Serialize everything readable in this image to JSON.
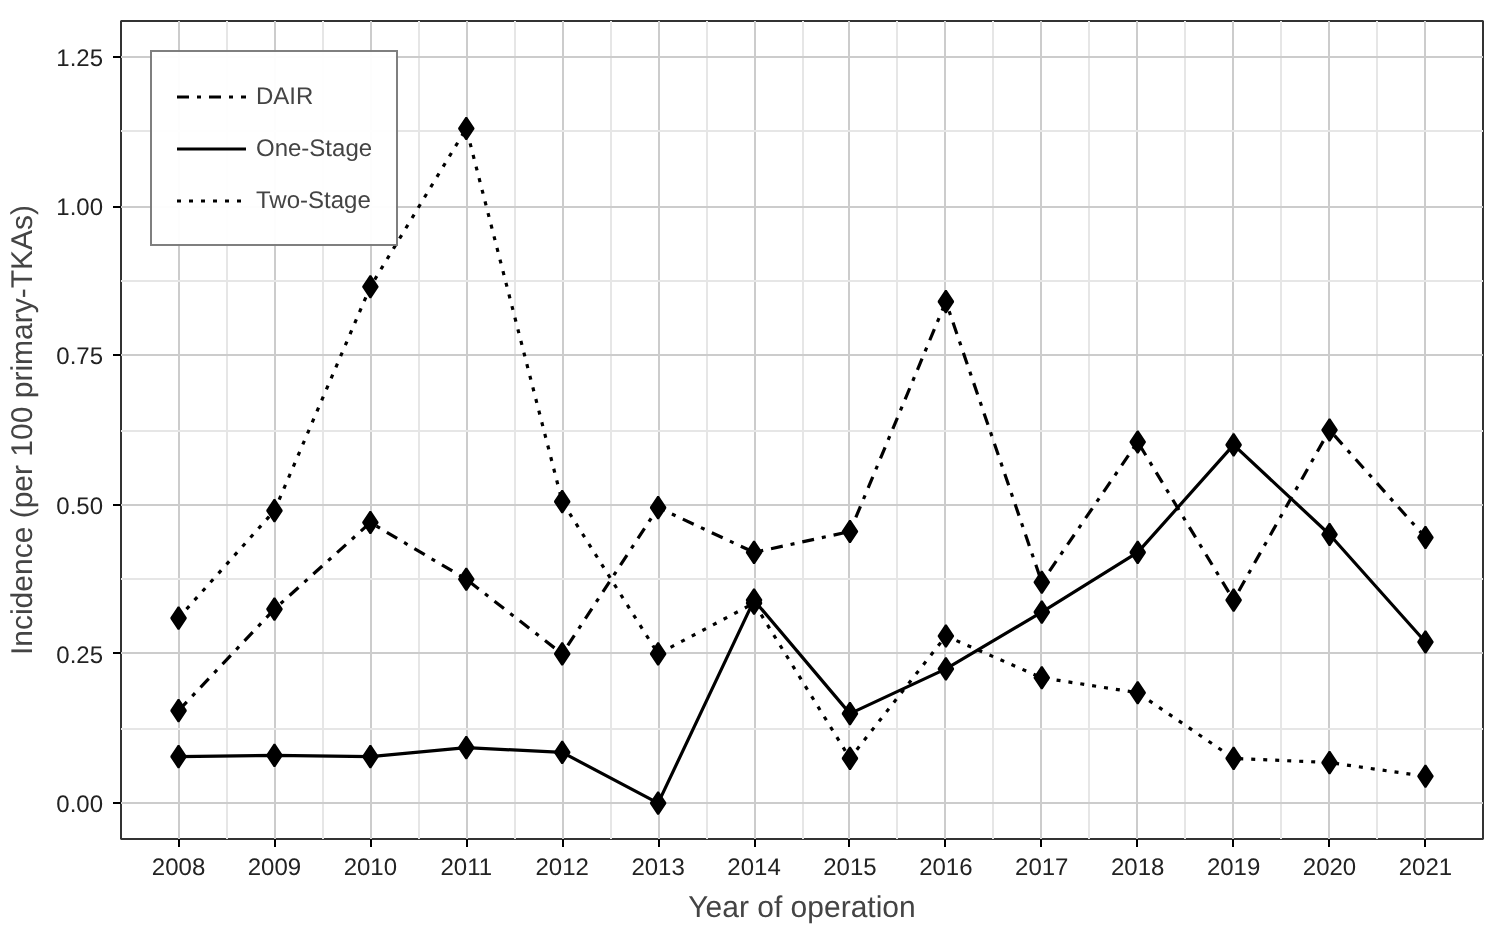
{
  "chart_data": {
    "type": "line",
    "xlabel": "Year of operation",
    "ylabel": "Incidence (per 100 primary-TKAs)",
    "x": [
      2008,
      2009,
      2010,
      2011,
      2012,
      2013,
      2014,
      2015,
      2016,
      2017,
      2018,
      2019,
      2020,
      2021
    ],
    "xlim": [
      2007.4,
      2021.6
    ],
    "xticks": [
      2008,
      2009,
      2010,
      2011,
      2012,
      2013,
      2014,
      2015,
      2016,
      2017,
      2018,
      2019,
      2020,
      2021
    ],
    "ylim": [
      -0.06,
      1.31
    ],
    "yticks": [
      {
        "value": 0,
        "label": "0.00"
      },
      {
        "value": 0.25,
        "label": "0.25"
      },
      {
        "value": 0.5,
        "label": "0.50"
      },
      {
        "value": 0.75,
        "label": "0.75"
      },
      {
        "value": 1,
        "label": "1.00"
      },
      {
        "value": 1.25,
        "label": "1.25"
      }
    ],
    "grid": true,
    "legend": "top left",
    "marker": "diamond",
    "series": [
      {
        "name": "DAIR",
        "color": "#000000",
        "line_style": "dashdot",
        "values": [
          0.155,
          0.325,
          0.47,
          0.375,
          0.25,
          0.495,
          0.42,
          0.455,
          0.84,
          0.37,
          0.605,
          0.34,
          0.625,
          0.445
        ]
      },
      {
        "name": "One-Stage",
        "color": "#000000",
        "line_style": "solid",
        "values": [
          0.078,
          0.08,
          0.078,
          0.093,
          0.085,
          0.0,
          0.34,
          0.15,
          0.225,
          0.32,
          0.42,
          0.6,
          0.45,
          0.27
        ]
      },
      {
        "name": "Two-Stage",
        "color": "#000000",
        "line_style": "dotted",
        "values": [
          0.31,
          0.49,
          0.865,
          1.13,
          0.505,
          0.25,
          0.335,
          0.075,
          0.28,
          0.21,
          0.185,
          0.075,
          0.068,
          0.045
        ]
      }
    ]
  }
}
